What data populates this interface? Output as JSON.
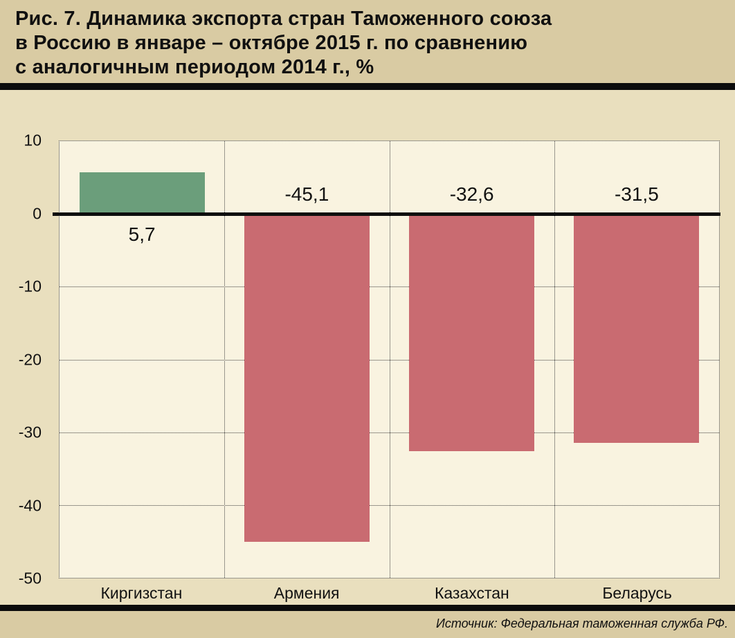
{
  "figure": {
    "title_lines": [
      "Рис. 7. Динамика экспорта стран Таможенного союза",
      "в Россию в январе – октябре 2015 г. по сравнению",
      "с аналогичным периодом 2014 г., %"
    ],
    "source": "Источник: Федеральная таможенная служба РФ."
  },
  "chart_data": {
    "type": "bar",
    "title": "Динамика экспорта стран Таможенного союза в Россию в январе – октябре 2015 г. по сравнению с аналогичным периодом 2014 г., %",
    "categories": [
      "Киргизстан",
      "Армения",
      "Казахстан",
      "Беларусь"
    ],
    "values": [
      5.7,
      -45.1,
      -32.6,
      -31.5
    ],
    "value_labels": [
      "5,7",
      "-45,1",
      "-32,6",
      "-31,5"
    ],
    "xlabel": "",
    "ylabel": "",
    "ylim": [
      -50,
      10
    ],
    "yticks": [
      10,
      0,
      -10,
      -20,
      -30,
      -40,
      -50
    ],
    "grid": "dotted vertical and horizontal gridlines, thick solid zero axis",
    "legend": "none",
    "colors": {
      "positive_bar": "#6b9e7b",
      "negative_bar": "#c96b71",
      "zero_axis": "#0d0d0d",
      "plot_background": "#f9f3e0",
      "page_background": "#d9cba3"
    }
  }
}
